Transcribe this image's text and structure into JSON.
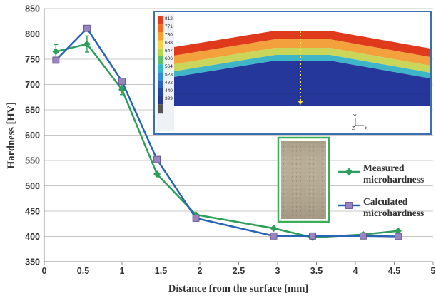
{
  "chart_data": {
    "type": "line",
    "xlabel": "Distance from the surface [mm]",
    "ylabel": "Hardness [HV]",
    "xlim": [
      0,
      5
    ],
    "ylim": [
      350,
      850
    ],
    "xticks": [
      "0",
      "0.5",
      "1",
      "1.5",
      "2",
      "2.5",
      "3",
      "3.5",
      "4",
      "4.5",
      "5"
    ],
    "yticks": [
      "350",
      "400",
      "450",
      "500",
      "550",
      "600",
      "650",
      "700",
      "750",
      "800",
      "850"
    ],
    "grid": "horizontal",
    "legend_position": "right",
    "series": [
      {
        "name": "Measured microhardness",
        "color": "#2e9e5b",
        "marker": "diamond",
        "x": [
          0.15,
          0.55,
          1.0,
          1.45,
          1.95,
          2.95,
          3.45,
          4.1,
          4.55
        ],
        "y": [
          765,
          780,
          690,
          523,
          443,
          416,
          398,
          404,
          411
        ],
        "error": [
          14,
          16,
          10,
          0,
          0,
          0,
          0,
          0,
          0
        ]
      },
      {
        "name": "Calculated microhardness",
        "color": "#2a64b4",
        "marker": "square",
        "x": [
          0.15,
          0.55,
          1.0,
          1.45,
          1.95,
          2.95,
          3.45,
          4.1,
          4.55
        ],
        "y": [
          748,
          811,
          706,
          552,
          436,
          401,
          401,
          401,
          400
        ],
        "error": [
          0,
          0,
          0,
          0,
          0,
          0,
          0,
          0,
          0
        ]
      }
    ]
  },
  "inset": {
    "colorbar_ticks": [
      "812",
      "771",
      "730",
      "688",
      "647",
      "606",
      "564",
      "523",
      "482",
      "440",
      "399"
    ],
    "colorbar_colors": [
      "#e23a1e",
      "#f06a1f",
      "#f7a12b",
      "#f4d34a",
      "#b8d84a",
      "#5fc06a",
      "#35b6c8",
      "#2f8fd6",
      "#2d5fc4",
      "#2742a6",
      "#243690"
    ],
    "axis_y": "Y",
    "axis_z": "Z",
    "axis_x": "X"
  }
}
